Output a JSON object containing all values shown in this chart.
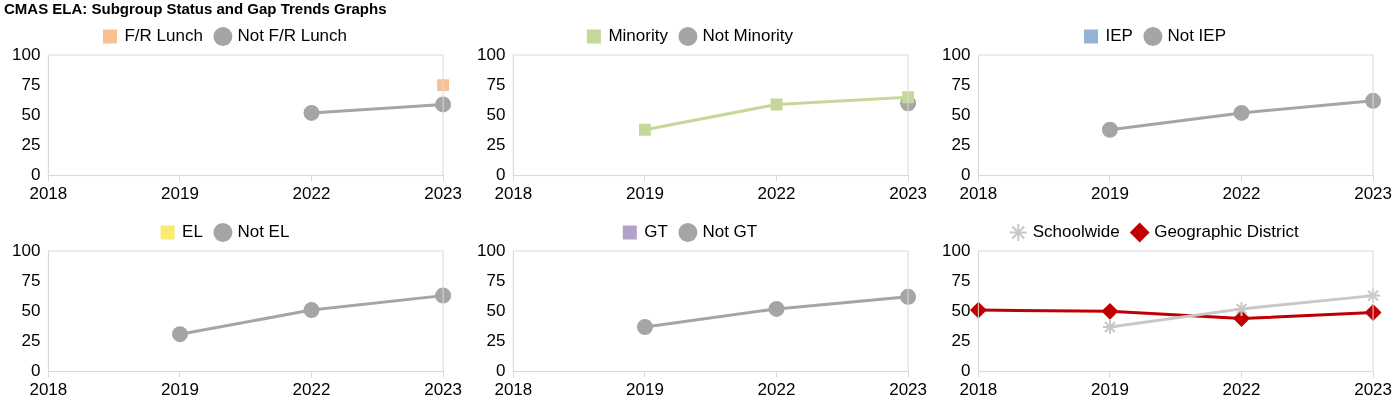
{
  "chart_data": [
    {
      "type": "line",
      "title": "CMAS ELA: Subgroup Status and Gap Trends Graphs",
      "categories": [
        "2018",
        "2019",
        "2022",
        "2023"
      ],
      "ylim": [
        0,
        100
      ],
      "yticks": [
        0,
        25,
        50,
        75,
        100
      ],
      "legend": "top",
      "series": [
        {
          "name": "F/R Lunch",
          "color": "#f9c193",
          "marker": "square",
          "values": [
            null,
            null,
            null,
            75
          ]
        },
        {
          "name": "Not F/R Lunch",
          "color": "#a5a5a5",
          "marker": "circle",
          "values": [
            null,
            null,
            52,
            59
          ]
        }
      ]
    },
    {
      "type": "line",
      "categories": [
        "2018",
        "2019",
        "2022",
        "2023"
      ],
      "ylim": [
        0,
        100
      ],
      "yticks": [
        0,
        25,
        50,
        75,
        100
      ],
      "legend": "top",
      "series": [
        {
          "name": "Minority",
          "color": "#c5d89b",
          "marker": "square",
          "values": [
            null,
            38,
            59,
            65
          ]
        },
        {
          "name": "Not Minority",
          "color": "#a5a5a5",
          "marker": "circle",
          "values": [
            null,
            null,
            null,
            60
          ]
        }
      ]
    },
    {
      "type": "line",
      "categories": [
        "2018",
        "2019",
        "2022",
        "2023"
      ],
      "ylim": [
        0,
        100
      ],
      "yticks": [
        0,
        25,
        50,
        75,
        100
      ],
      "legend": "top",
      "series": [
        {
          "name": "IEP",
          "color": "#95b3d7",
          "marker": "square",
          "values": [
            null,
            null,
            null,
            null
          ]
        },
        {
          "name": "Not IEP",
          "color": "#a5a5a5",
          "marker": "circle",
          "values": [
            null,
            38,
            52,
            62
          ]
        }
      ]
    },
    {
      "type": "line",
      "categories": [
        "2018",
        "2019",
        "2022",
        "2023"
      ],
      "ylim": [
        0,
        100
      ],
      "yticks": [
        0,
        25,
        50,
        75,
        100
      ],
      "legend": "top",
      "series": [
        {
          "name": "EL",
          "color": "#f7ec6e",
          "marker": "square",
          "values": [
            null,
            null,
            null,
            null
          ]
        },
        {
          "name": "Not EL",
          "color": "#a5a5a5",
          "marker": "circle",
          "values": [
            null,
            31,
            51,
            63
          ]
        }
      ]
    },
    {
      "type": "line",
      "categories": [
        "2018",
        "2019",
        "2022",
        "2023"
      ],
      "ylim": [
        0,
        100
      ],
      "yticks": [
        0,
        25,
        50,
        75,
        100
      ],
      "legend": "top",
      "series": [
        {
          "name": "GT",
          "color": "#b3a2c7",
          "marker": "square",
          "values": [
            null,
            null,
            null,
            null
          ]
        },
        {
          "name": "Not GT",
          "color": "#a5a5a5",
          "marker": "circle",
          "values": [
            null,
            37,
            52,
            62
          ]
        }
      ]
    },
    {
      "type": "line",
      "categories": [
        "2018",
        "2019",
        "2022",
        "2023"
      ],
      "ylim": [
        0,
        100
      ],
      "yticks": [
        0,
        25,
        50,
        75,
        100
      ],
      "legend": "top",
      "series": [
        {
          "name": "Schoolwide",
          "color": "#c8c8c8",
          "marker": "cross",
          "values": [
            null,
            37,
            52,
            63
          ]
        },
        {
          "name": "Geographic District",
          "color": "#c00000",
          "marker": "diamond",
          "values": [
            51,
            50,
            44,
            49
          ]
        }
      ]
    }
  ]
}
